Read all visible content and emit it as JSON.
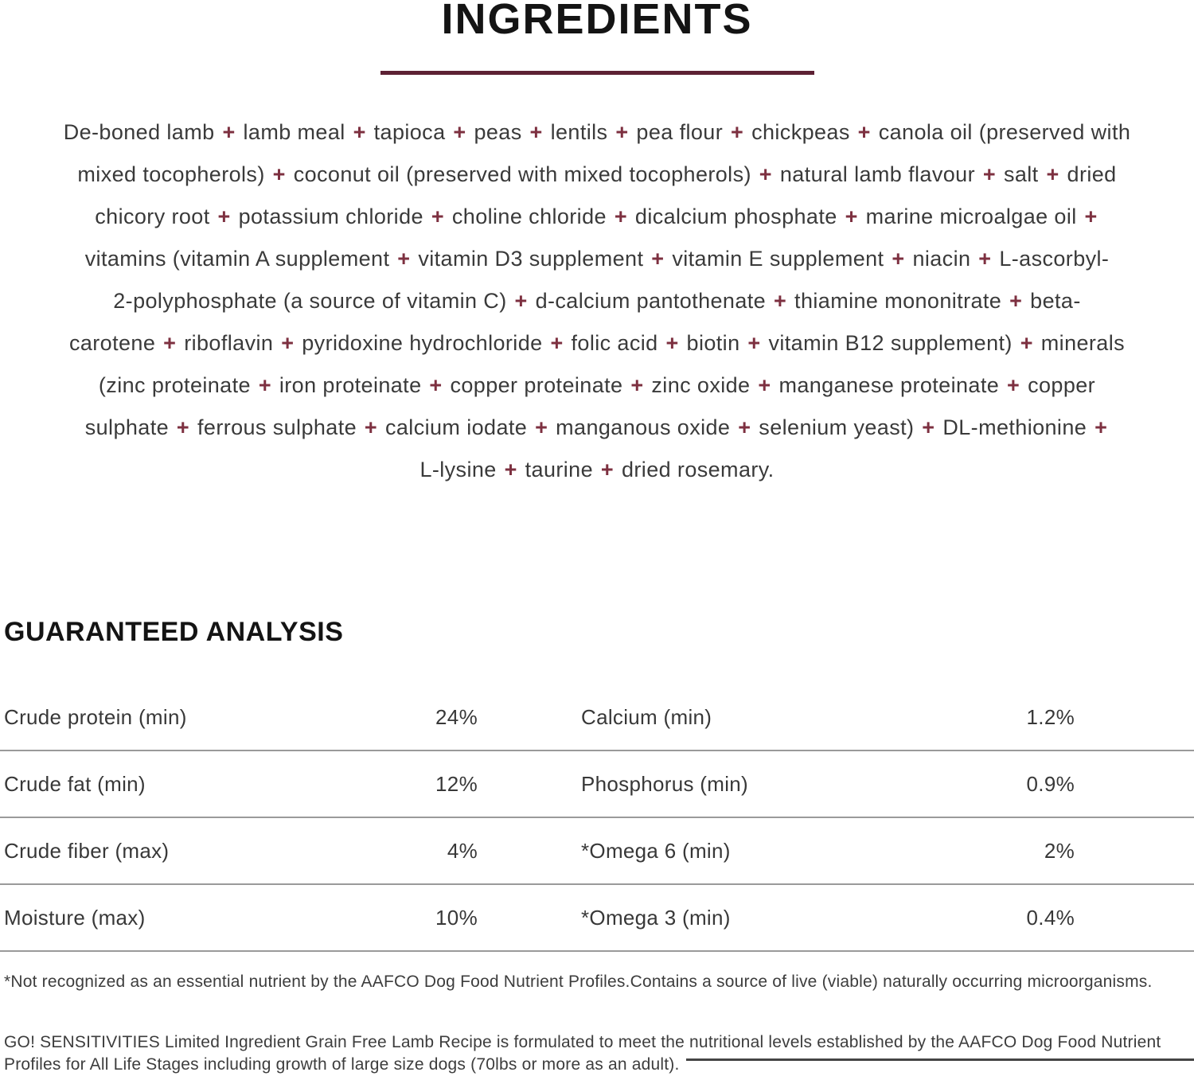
{
  "page": {
    "title": "INGREDIENTS"
  },
  "colors": {
    "accent_rule": "#5d2134",
    "plus_sign": "#7d3040",
    "heading_text": "#141414",
    "body_text": "#3a3a3a",
    "table_divider": "#9a9a9a"
  },
  "ingredients": {
    "lines": [
      "De-boned lamb + lamb meal + tapioca + peas + lentils + pea flour + chickpeas + canola oil (preserved with",
      "mixed tocopherols) + coconut oil (preserved with mixed tocopherols) + natural lamb flavour + salt + dried",
      "chicory root + potassium chloride + choline chloride + dicalcium phosphate + marine microalgae oil +",
      "vitamins (vitamin A supplement + vitamin D3 supplement + vitamin E supplement + niacin + L-ascorbyl-",
      "2-polyphosphate (a source of vitamin C) + d-calcium pantothenate + thiamine mononitrate + beta-",
      "carotene + riboflavin + pyridoxine hydrochloride + folic acid + biotin + vitamin B12 supplement) + minerals",
      "(zinc proteinate + iron proteinate + copper proteinate + zinc oxide + manganese proteinate + copper",
      "sulphate + ferrous sulphate + calcium iodate + manganous oxide + selenium yeast) + DL-methionine +",
      "L-lysine + taurine + dried rosemary."
    ]
  },
  "guaranteed_analysis": {
    "heading": "GUARANTEED ANALYSIS",
    "rows": [
      {
        "left_label": "Crude protein (min)",
        "left_value": "24%",
        "right_label": "Calcium (min)",
        "right_value": "1.2%"
      },
      {
        "left_label": "Crude fat (min)",
        "left_value": "12%",
        "right_label": "Phosphorus (min)",
        "right_value": "0.9%"
      },
      {
        "left_label": "Crude fiber (max)",
        "left_value": "4%",
        "right_label": "*Omega 6 (min)",
        "right_value": "2%"
      },
      {
        "left_label": "Moisture (max)",
        "left_value": "10%",
        "right_label": "*Omega 3 (min)",
        "right_value": "0.4%"
      }
    ]
  },
  "footnotes": {
    "aafco_note": "*Not recognized as an essential nutrient by the AAFCO Dog Food Nutrient Profiles.Contains a source of live (viable) naturally occurring microorganisms.",
    "formulation_lines": [
      "GO! SENSITIVITIES Limited Ingredient Grain Free Lamb Recipe is formulated to meet the nutritional levels established by the AAFCO Dog Food Nutrient",
      "Profiles for All Life Stages including growth of large size dogs (70lbs or more as an adult)."
    ]
  }
}
